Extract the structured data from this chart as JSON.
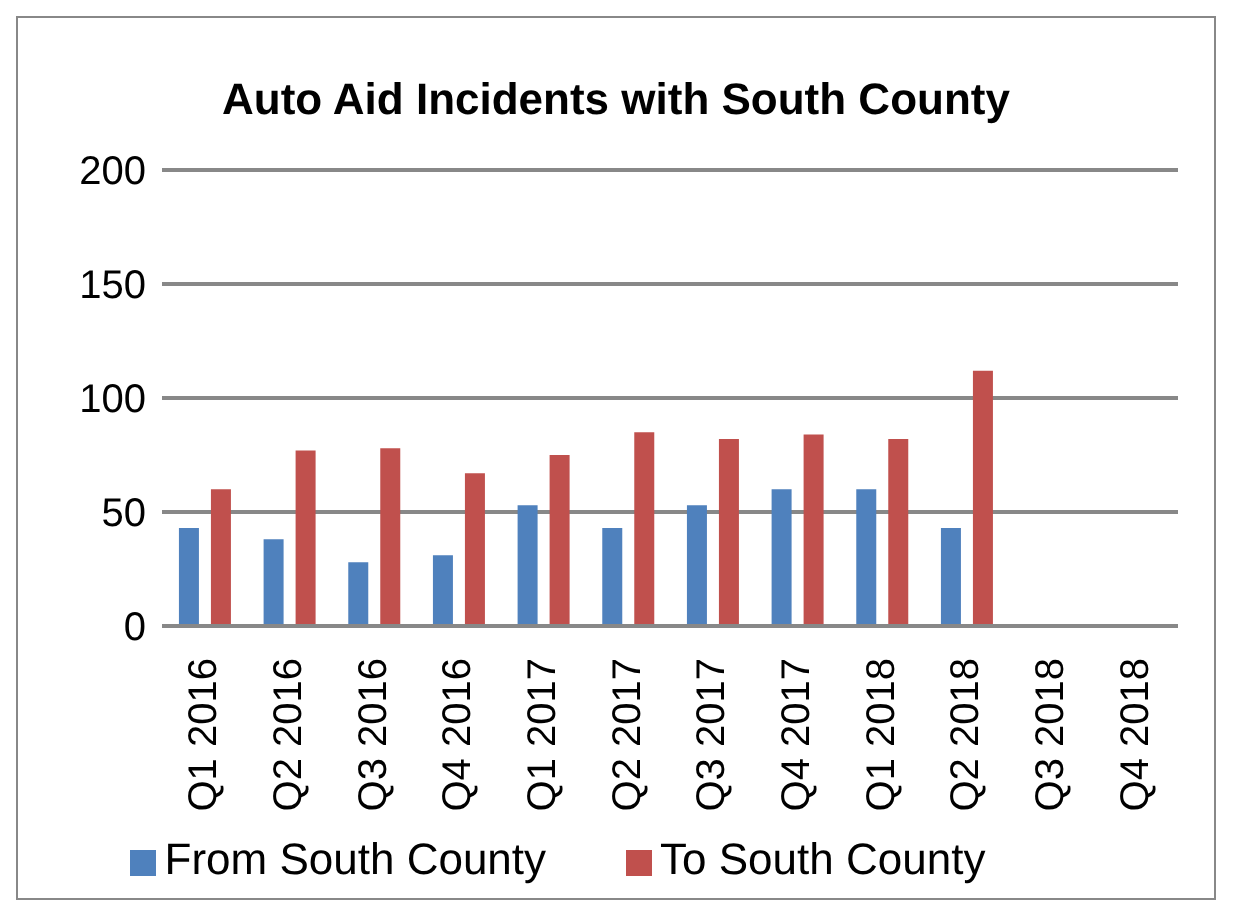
{
  "chart_data": {
    "type": "bar",
    "title": "Auto Aid Incidents with South County",
    "categories": [
      "Q1 2016",
      "Q2 2016",
      "Q3 2016",
      "Q4 2016",
      "Q1 2017",
      "Q2 2017",
      "Q3 2017",
      "Q4 2017",
      "Q1 2018",
      "Q2 2018",
      "Q3 2018",
      "Q4 2018"
    ],
    "series": [
      {
        "name": "From South County",
        "color": "#4f81bd",
        "values": [
          43,
          38,
          28,
          31,
          53,
          43,
          53,
          60,
          60,
          43,
          null,
          null
        ]
      },
      {
        "name": "To South County",
        "color": "#c0504d",
        "values": [
          60,
          77,
          78,
          67,
          75,
          85,
          82,
          84,
          82,
          112,
          null,
          null
        ]
      }
    ],
    "ylim": [
      0,
      200
    ],
    "yticks": [
      0,
      50,
      100,
      150,
      200
    ],
    "grid": "y",
    "legend": "bottom"
  }
}
